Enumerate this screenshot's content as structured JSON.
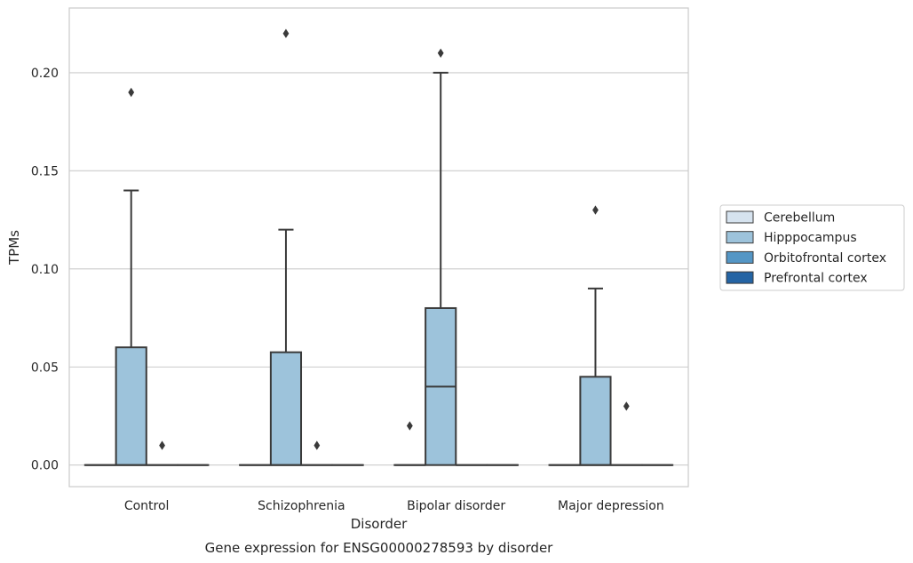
{
  "chart_data": {
    "type": "box",
    "title": "",
    "caption": "Gene expression for ENSG00000278593 by disorder",
    "xlabel": "Disorder",
    "ylabel": "TPMs",
    "ylim": [
      -0.011,
      0.233
    ],
    "yticks": [
      0.0,
      0.05,
      0.1,
      0.15,
      0.2
    ],
    "ytick_labels": [
      "0.00",
      "0.05",
      "0.10",
      "0.15",
      "0.20"
    ],
    "categories": [
      "Control",
      "Schizophrenia",
      "Bipolar disorder",
      "Major depression"
    ],
    "grid": "horizontal",
    "legend_position": "right",
    "series": [
      {
        "name": "Cerebellum",
        "color": "#d6e3ef",
        "boxes": [
          {
            "category": "Control",
            "q1": 0,
            "median": 0,
            "q3": 0,
            "whisker_low": 0,
            "whisker_high": 0,
            "outliers": []
          },
          {
            "category": "Schizophrenia",
            "q1": 0,
            "median": 0,
            "q3": 0,
            "whisker_low": 0,
            "whisker_high": 0,
            "outliers": []
          },
          {
            "category": "Bipolar disorder",
            "q1": 0,
            "median": 0,
            "q3": 0,
            "whisker_low": 0,
            "whisker_high": 0,
            "outliers": [
              0.02
            ]
          },
          {
            "category": "Major depression",
            "q1": 0,
            "median": 0,
            "q3": 0,
            "whisker_low": 0,
            "whisker_high": 0,
            "outliers": []
          }
        ]
      },
      {
        "name": "Hipppocampus",
        "color": "#9dc3db",
        "boxes": [
          {
            "category": "Control",
            "q1": 0,
            "median": 0,
            "q3": 0.06,
            "whisker_low": 0,
            "whisker_high": 0.14,
            "outliers": [
              0.19
            ]
          },
          {
            "category": "Schizophrenia",
            "q1": 0,
            "median": 0,
            "q3": 0.0575,
            "whisker_low": 0,
            "whisker_high": 0.12,
            "outliers": [
              0.22
            ]
          },
          {
            "category": "Bipolar disorder",
            "q1": 0,
            "median": 0.04,
            "q3": 0.08,
            "whisker_low": 0,
            "whisker_high": 0.2,
            "outliers": [
              0.21
            ]
          },
          {
            "category": "Major depression",
            "q1": 0,
            "median": 0,
            "q3": 0.045,
            "whisker_low": 0,
            "whisker_high": 0.09,
            "outliers": [
              0.13
            ]
          }
        ]
      },
      {
        "name": "Orbitofrontal cortex",
        "color": "#5496c5",
        "boxes": [
          {
            "category": "Control",
            "q1": 0,
            "median": 0,
            "q3": 0,
            "whisker_low": 0,
            "whisker_high": 0,
            "outliers": [
              0.01
            ]
          },
          {
            "category": "Schizophrenia",
            "q1": 0,
            "median": 0,
            "q3": 0,
            "whisker_low": 0,
            "whisker_high": 0,
            "outliers": [
              0.01
            ]
          },
          {
            "category": "Bipolar disorder",
            "q1": 0,
            "median": 0,
            "q3": 0,
            "whisker_low": 0,
            "whisker_high": 0,
            "outliers": []
          },
          {
            "category": "Major depression",
            "q1": 0,
            "median": 0,
            "q3": 0,
            "whisker_low": 0,
            "whisker_high": 0,
            "outliers": [
              0.03
            ]
          }
        ]
      },
      {
        "name": "Prefrontal cortex",
        "color": "#2464a4",
        "boxes": [
          {
            "category": "Control",
            "q1": 0,
            "median": 0,
            "q3": 0,
            "whisker_low": 0,
            "whisker_high": 0,
            "outliers": []
          },
          {
            "category": "Schizophrenia",
            "q1": 0,
            "median": 0,
            "q3": 0,
            "whisker_low": 0,
            "whisker_high": 0,
            "outliers": []
          },
          {
            "category": "Bipolar disorder",
            "q1": 0,
            "median": 0,
            "q3": 0,
            "whisker_low": 0,
            "whisker_high": 0,
            "outliers": []
          },
          {
            "category": "Major depression",
            "q1": 0,
            "median": 0,
            "q3": 0,
            "whisker_low": 0,
            "whisker_high": 0,
            "outliers": []
          }
        ]
      }
    ]
  }
}
